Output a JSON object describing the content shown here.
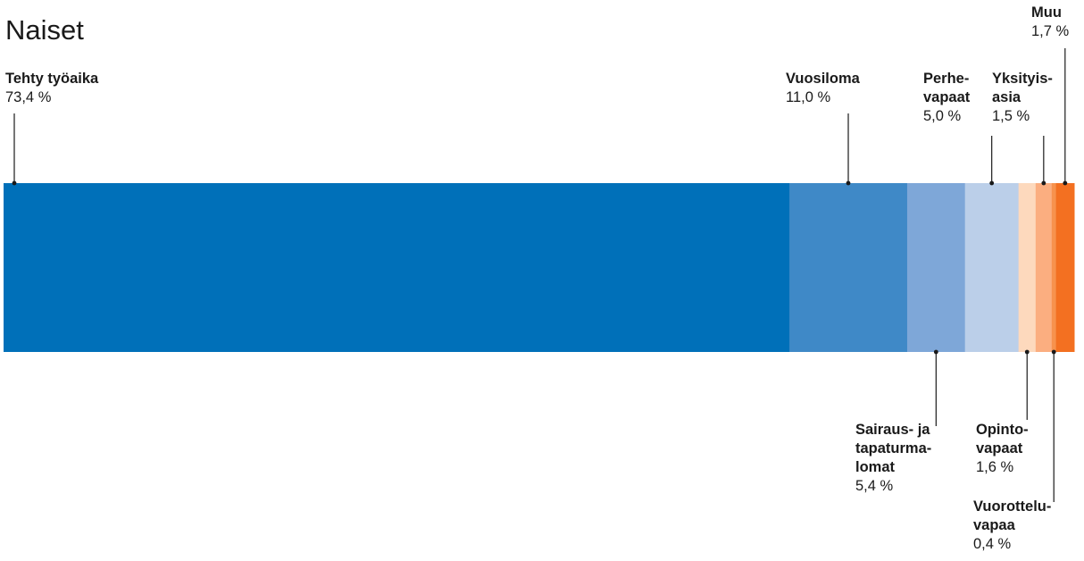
{
  "chart_data": {
    "type": "bar",
    "title": "Naiset",
    "layout": "single stacked horizontal bar (100%)",
    "categories": [
      "Tehty työaika",
      "Vuosiloma",
      "Sairaus- ja tapaturmalomat",
      "Perhevapaat",
      "Opintovapaat",
      "Yksityisasia",
      "Vuorotteluvapaa",
      "Muu"
    ],
    "values": [
      73.4,
      11.0,
      5.4,
      5.0,
      1.6,
      1.5,
      0.4,
      1.7
    ],
    "segments": [
      {
        "lines": [
          "Tehty työaika"
        ],
        "value": 73.4,
        "value_text": "73,4 %",
        "color": "#0070b9",
        "side": "top"
      },
      {
        "lines": [
          "Vuosiloma"
        ],
        "value": 11.0,
        "value_text": "11,0 %",
        "color": "#3f89c7",
        "side": "top"
      },
      {
        "lines": [
          "Sairaus- ja",
          "tapaturma-",
          "lomat"
        ],
        "value": 5.4,
        "value_text": "5,4 %",
        "color": "#7ea7d8",
        "side": "bottom"
      },
      {
        "lines": [
          "Perhe-",
          "vapaat"
        ],
        "value": 5.0,
        "value_text": "5,0 %",
        "color": "#bbcfe9",
        "side": "top"
      },
      {
        "lines": [
          "Opinto-",
          "vapaat"
        ],
        "value": 1.6,
        "value_text": "1,6 %",
        "color": "#fdd9bd",
        "side": "bottom"
      },
      {
        "lines": [
          "Yksityis-",
          "asia"
        ],
        "value": 1.5,
        "value_text": "1,5 %",
        "color": "#fbae80",
        "side": "top"
      },
      {
        "lines": [
          "Vuorottelu-",
          "vapaa"
        ],
        "value": 0.4,
        "value_text": "0,4 %",
        "color": "#f7924d",
        "side": "bottom"
      },
      {
        "lines": [
          "Muu"
        ],
        "value": 1.7,
        "value_text": "1,7 %",
        "color": "#f37021",
        "side": "top"
      }
    ],
    "legend": "none",
    "grid": false
  }
}
